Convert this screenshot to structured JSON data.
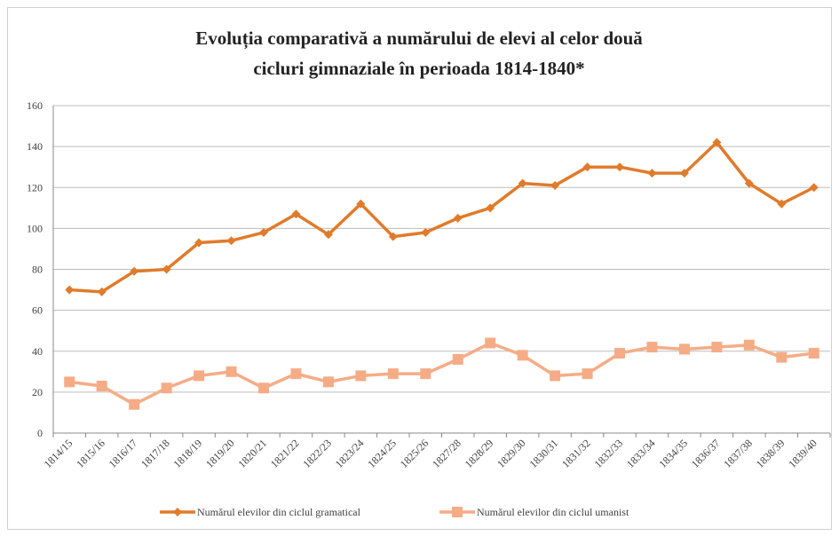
{
  "chart_data": {
    "type": "line",
    "title": [
      "Evoluția comparativă a numărului de elevi al celor două",
      "cicluri gimnaziale în perioada 1814-1840*"
    ],
    "categories": [
      "1814/15",
      "1815/16",
      "1816/17",
      "1817/18",
      "1818/19",
      "1819/20",
      "1820/21",
      "1821/22",
      "1822/23",
      "1823/24",
      "1824/25",
      "1825/26",
      "1827/28",
      "1828/29",
      "1829/30",
      "1830/31",
      "1831/32",
      "1832/33",
      "1833/34",
      "1834/35",
      "1836/37",
      "1837/38",
      "1838/39",
      "1839/40"
    ],
    "series": [
      {
        "name": "Numărul elevilor din ciclul gramatical",
        "color": "#e07b2b",
        "marker": "diamond",
        "values": [
          70,
          69,
          79,
          80,
          93,
          94,
          98,
          107,
          97,
          112,
          96,
          98,
          105,
          110,
          122,
          121,
          130,
          130,
          127,
          127,
          142,
          122,
          112,
          120
        ]
      },
      {
        "name": "Numărul elevilor din ciclul umanist",
        "color": "#f5ac86",
        "marker": "square",
        "values": [
          25,
          23,
          14,
          22,
          28,
          30,
          22,
          29,
          25,
          28,
          29,
          29,
          36,
          44,
          38,
          28,
          29,
          39,
          42,
          41,
          42,
          43,
          37,
          39
        ]
      }
    ],
    "ylim": [
      0,
      160
    ],
    "yticks": [
      0,
      20,
      40,
      60,
      80,
      100,
      120,
      140,
      160
    ],
    "grid": true,
    "legend": "bottom"
  }
}
